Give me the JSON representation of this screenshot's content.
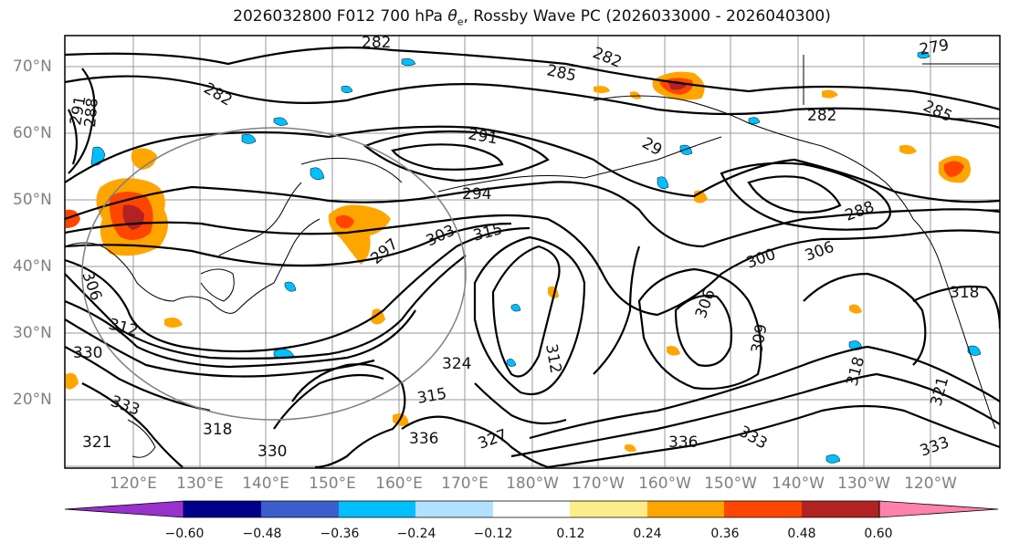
{
  "title": {
    "run": "2026032800",
    "forecast": "F012",
    "level": "700 hPa",
    "field_symbol": "θ",
    "field_subscript": "e",
    "suffix": ", Rossby Wave PC (2026033000 - 2026040300)"
  },
  "lat_labels": [
    "70°N",
    "60°N",
    "50°N",
    "40°N",
    "30°N",
    "20°N"
  ],
  "lon_labels": [
    "120°E",
    "130°E",
    "140°E",
    "150°E",
    "160°E",
    "170°E",
    "180°W",
    "170°W",
    "160°W",
    "150°W",
    "140°W",
    "130°W",
    "120°W"
  ],
  "contour_labels": [
    {
      "text": "282"
    },
    {
      "text": "282"
    },
    {
      "text": "285"
    },
    {
      "text": "279"
    },
    {
      "text": "282"
    },
    {
      "text": "282"
    },
    {
      "text": "285"
    },
    {
      "text": "291"
    },
    {
      "text": "288"
    },
    {
      "text": "291"
    },
    {
      "text": "294"
    },
    {
      "text": "29"
    },
    {
      "text": "288"
    },
    {
      "text": "297"
    },
    {
      "text": "303"
    },
    {
      "text": "315"
    },
    {
      "text": "300"
    },
    {
      "text": "306"
    },
    {
      "text": "306"
    },
    {
      "text": "306"
    },
    {
      "text": "318"
    },
    {
      "text": "312"
    },
    {
      "text": "309"
    },
    {
      "text": "318"
    },
    {
      "text": "324"
    },
    {
      "text": "315"
    },
    {
      "text": "312"
    },
    {
      "text": "330"
    },
    {
      "text": "333"
    },
    {
      "text": "318"
    },
    {
      "text": "321"
    },
    {
      "text": "336"
    },
    {
      "text": "327"
    },
    {
      "text": "336"
    },
    {
      "text": "333"
    },
    {
      "text": "321"
    },
    {
      "text": "333"
    },
    {
      "text": "330"
    }
  ],
  "colorbar": {
    "ticks": [
      "−0.60",
      "−0.48",
      "−0.36",
      "−0.24",
      "−0.12",
      "0.12",
      "0.24",
      "0.36",
      "0.48",
      "0.60"
    ],
    "colors": [
      "#9932cc",
      "#00008b",
      "#3a5fcd",
      "#00bfff",
      "#b0e2ff",
      "#ffffff",
      "#ffec8b",
      "#ffa500",
      "#ff4500",
      "#b22222",
      "#ff82ab"
    ]
  },
  "map_colors": {
    "contour": "#000000",
    "coastline": "#000000",
    "grid": "#808080",
    "wave_circle": "#808080"
  }
}
